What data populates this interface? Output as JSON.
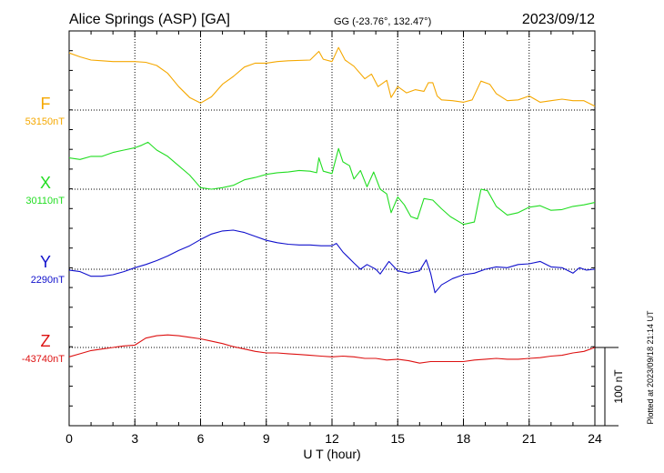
{
  "header": {
    "station": "Alice Springs (ASP)  [GA]",
    "coords": "GG (-23.76°, 132.47°)",
    "date": "2023/09/12"
  },
  "footer": {
    "plotted": "Plotted at 2023/09/18 21:14 UT"
  },
  "colors": {
    "F": "#f5a800",
    "X": "#22dd22",
    "Y": "#1010cc",
    "Z": "#dd1111"
  },
  "chart_data": {
    "type": "line",
    "xlabel": "U T (hour)",
    "xlim": [
      0,
      24
    ],
    "x_ticks": [
      "0",
      "3",
      "6",
      "9",
      "12",
      "15",
      "18",
      "21",
      "24"
    ],
    "scale_bar": {
      "label": "100 nT",
      "value_nT": 100
    },
    "series": [
      {
        "name": "F",
        "baseline_label": "53150nT",
        "baseline_nT": 53150,
        "points": [
          [
            0,
            53223
          ],
          [
            0.5,
            53218
          ],
          [
            1,
            53214
          ],
          [
            1.5,
            53213
          ],
          [
            2,
            53212
          ],
          [
            2.5,
            53212
          ],
          [
            3,
            53212
          ],
          [
            3.5,
            53211
          ],
          [
            4,
            53207
          ],
          [
            4.5,
            53197
          ],
          [
            5,
            53180
          ],
          [
            5.5,
            53166
          ],
          [
            6,
            53159
          ],
          [
            6.5,
            53167
          ],
          [
            7,
            53183
          ],
          [
            7.5,
            53193
          ],
          [
            8,
            53205
          ],
          [
            8.5,
            53210
          ],
          [
            9,
            53210
          ],
          [
            9.5,
            53212
          ],
          [
            10,
            53213
          ],
          [
            11,
            53214
          ],
          [
            11.4,
            53225
          ],
          [
            11.6,
            53215
          ],
          [
            12,
            53212
          ],
          [
            12.3,
            53230
          ],
          [
            12.6,
            53214
          ],
          [
            13,
            53206
          ],
          [
            13.5,
            53190
          ],
          [
            13.8,
            53196
          ],
          [
            14.1,
            53180
          ],
          [
            14.5,
            53188
          ],
          [
            14.7,
            53166
          ],
          [
            15,
            53180
          ],
          [
            15.4,
            53172
          ],
          [
            15.8,
            53176
          ],
          [
            16.2,
            53174
          ],
          [
            16.4,
            53185
          ],
          [
            16.6,
            53185
          ],
          [
            16.8,
            53168
          ],
          [
            17,
            53163
          ],
          [
            17.5,
            53162
          ],
          [
            18,
            53160
          ],
          [
            18.4,
            53163
          ],
          [
            18.8,
            53187
          ],
          [
            19.2,
            53183
          ],
          [
            19.5,
            53171
          ],
          [
            20,
            53162
          ],
          [
            20.5,
            53163
          ],
          [
            21,
            53168
          ],
          [
            21.5,
            53160
          ],
          [
            22,
            53162
          ],
          [
            22.5,
            53164
          ],
          [
            23,
            53162
          ],
          [
            23.5,
            53162
          ],
          [
            24,
            53155
          ]
        ]
      },
      {
        "name": "X",
        "baseline_label": "30110nT",
        "baseline_nT": 30110,
        "points": [
          [
            0,
            30150
          ],
          [
            0.5,
            30148
          ],
          [
            1,
            30152
          ],
          [
            1.5,
            30152
          ],
          [
            2,
            30157
          ],
          [
            2.5,
            30160
          ],
          [
            3,
            30163
          ],
          [
            3.3,
            30166
          ],
          [
            3.6,
            30170
          ],
          [
            4,
            30160
          ],
          [
            4.5,
            30152
          ],
          [
            5,
            30140
          ],
          [
            5.5,
            30128
          ],
          [
            6,
            30112
          ],
          [
            6.5,
            30110
          ],
          [
            7,
            30112
          ],
          [
            7.5,
            30115
          ],
          [
            8,
            30122
          ],
          [
            8.5,
            30125
          ],
          [
            9,
            30129
          ],
          [
            9.5,
            30131
          ],
          [
            10,
            30132
          ],
          [
            10.5,
            30134
          ],
          [
            11,
            30133
          ],
          [
            11.3,
            30131
          ],
          [
            11.4,
            30150
          ],
          [
            11.6,
            30133
          ],
          [
            12,
            30130
          ],
          [
            12.3,
            30162
          ],
          [
            12.5,
            30145
          ],
          [
            12.8,
            30140
          ],
          [
            13,
            30123
          ],
          [
            13.3,
            30134
          ],
          [
            13.6,
            30113
          ],
          [
            13.9,
            30132
          ],
          [
            14.2,
            30110
          ],
          [
            14.5,
            30104
          ],
          [
            14.7,
            30080
          ],
          [
            15,
            30100
          ],
          [
            15.3,
            30090
          ],
          [
            15.6,
            30075
          ],
          [
            15.9,
            30072
          ],
          [
            16.2,
            30098
          ],
          [
            16.6,
            30096
          ],
          [
            17,
            30085
          ],
          [
            17.4,
            30075
          ],
          [
            18,
            30065
          ],
          [
            18.5,
            30068
          ],
          [
            18.8,
            30110
          ],
          [
            19.1,
            30108
          ],
          [
            19.5,
            30088
          ],
          [
            20,
            30077
          ],
          [
            20.5,
            30080
          ],
          [
            21,
            30087
          ],
          [
            21.5,
            30089
          ],
          [
            22,
            30083
          ],
          [
            22.5,
            30084
          ],
          [
            23,
            30088
          ],
          [
            23.5,
            30090
          ],
          [
            24,
            30093
          ]
        ]
      },
      {
        "name": "Y",
        "baseline_label": "2290nT",
        "baseline_nT": 2290,
        "points": [
          [
            0,
            2289
          ],
          [
            0.5,
            2287
          ],
          [
            1,
            2281
          ],
          [
            1.5,
            2281
          ],
          [
            2,
            2283
          ],
          [
            2.5,
            2287
          ],
          [
            3,
            2292
          ],
          [
            3.5,
            2296
          ],
          [
            4,
            2301
          ],
          [
            4.5,
            2307
          ],
          [
            5,
            2314
          ],
          [
            5.5,
            2320
          ],
          [
            6,
            2328
          ],
          [
            6.5,
            2335
          ],
          [
            7,
            2339
          ],
          [
            7.5,
            2340
          ],
          [
            8,
            2337
          ],
          [
            8.5,
            2332
          ],
          [
            9,
            2327
          ],
          [
            9.5,
            2324
          ],
          [
            10,
            2322
          ],
          [
            10.5,
            2321
          ],
          [
            11,
            2321
          ],
          [
            11.5,
            2320
          ],
          [
            12,
            2320
          ],
          [
            12.2,
            2323
          ],
          [
            12.5,
            2312
          ],
          [
            13,
            2298
          ],
          [
            13.3,
            2290
          ],
          [
            13.6,
            2296
          ],
          [
            14,
            2290
          ],
          [
            14.2,
            2284
          ],
          [
            14.6,
            2300
          ],
          [
            15,
            2288
          ],
          [
            15.5,
            2285
          ],
          [
            16,
            2288
          ],
          [
            16.3,
            2302
          ],
          [
            16.5,
            2285
          ],
          [
            16.7,
            2260
          ],
          [
            17,
            2270
          ],
          [
            17.5,
            2278
          ],
          [
            18,
            2283
          ],
          [
            18.5,
            2285
          ],
          [
            19,
            2290
          ],
          [
            19.5,
            2293
          ],
          [
            20,
            2292
          ],
          [
            20.5,
            2296
          ],
          [
            21,
            2297
          ],
          [
            21.5,
            2300
          ],
          [
            22,
            2293
          ],
          [
            22.5,
            2292
          ],
          [
            23,
            2285
          ],
          [
            23.3,
            2292
          ],
          [
            23.6,
            2289
          ],
          [
            24,
            2290
          ]
        ]
      },
      {
        "name": "Z",
        "baseline_label": "-43740nT",
        "baseline_nT": -43740,
        "points": [
          [
            0,
            -43752
          ],
          [
            0.5,
            -43748
          ],
          [
            1,
            -43744
          ],
          [
            1.5,
            -43742
          ],
          [
            2,
            -43740
          ],
          [
            2.5,
            -43738
          ],
          [
            3,
            -43737
          ],
          [
            3.5,
            -43728
          ],
          [
            4,
            -43725
          ],
          [
            4.5,
            -43724
          ],
          [
            5,
            -43725
          ],
          [
            5.5,
            -43727
          ],
          [
            6,
            -43729
          ],
          [
            6.5,
            -43732
          ],
          [
            7,
            -43735
          ],
          [
            7.5,
            -43739
          ],
          [
            8,
            -43742
          ],
          [
            8.5,
            -43745
          ],
          [
            9,
            -43747
          ],
          [
            9.5,
            -43747
          ],
          [
            10,
            -43748
          ],
          [
            10.5,
            -43749
          ],
          [
            11,
            -43750
          ],
          [
            11.5,
            -43751
          ],
          [
            12,
            -43752
          ],
          [
            12.5,
            -43751
          ],
          [
            13,
            -43752
          ],
          [
            13.5,
            -43754
          ],
          [
            14,
            -43754
          ],
          [
            14.5,
            -43756
          ],
          [
            15,
            -43755
          ],
          [
            15.5,
            -43757
          ],
          [
            16,
            -43760
          ],
          [
            16.5,
            -43758
          ],
          [
            17,
            -43758
          ],
          [
            17.5,
            -43758
          ],
          [
            18,
            -43758
          ],
          [
            18.5,
            -43756
          ],
          [
            19,
            -43755
          ],
          [
            19.5,
            -43754
          ],
          [
            20,
            -43755
          ],
          [
            20.5,
            -43755
          ],
          [
            21,
            -43754
          ],
          [
            21.5,
            -43753
          ],
          [
            22,
            -43751
          ],
          [
            22.5,
            -43750
          ],
          [
            23,
            -43747
          ],
          [
            23.5,
            -43745
          ],
          [
            24,
            -43740
          ]
        ]
      }
    ]
  }
}
